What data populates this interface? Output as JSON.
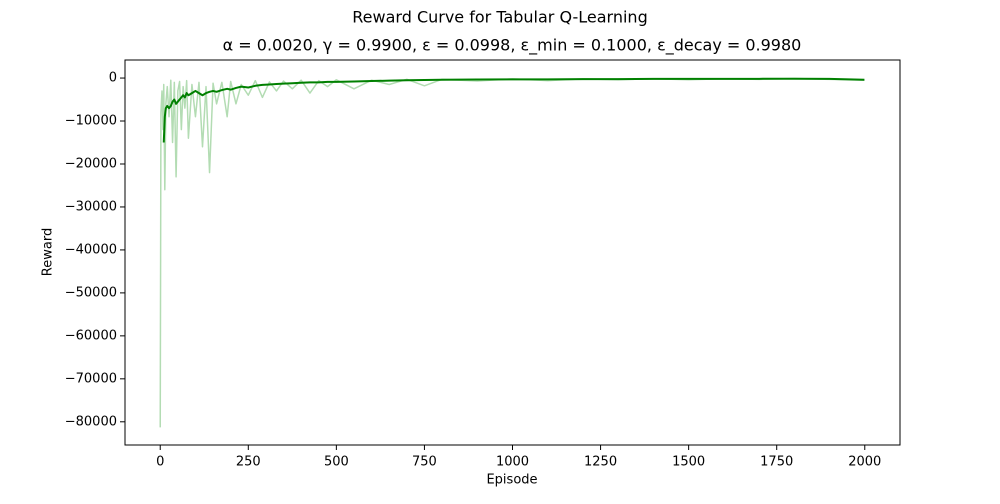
{
  "chart_data": {
    "type": "line",
    "title": "Reward Curve for Tabular Q-Learning",
    "subtitle": "α = 0.0020, γ = 0.9900, ε = 0.0998, ε_min = 0.1000, ε_decay = 0.9980",
    "x_label": "Episode",
    "y_label": "Reward",
    "x": [
      0,
      2,
      5,
      8,
      10,
      13,
      16,
      20,
      25,
      30,
      35,
      40,
      45,
      50,
      55,
      60,
      65,
      70,
      75,
      80,
      90,
      100,
      110,
      120,
      130,
      140,
      150,
      160,
      175,
      190,
      200,
      215,
      230,
      250,
      270,
      290,
      310,
      330,
      350,
      375,
      400,
      425,
      450,
      475,
      500,
      550,
      600,
      650,
      700,
      750,
      800,
      900,
      1000,
      1100,
      1200,
      1300,
      1400,
      1500,
      1600,
      1700,
      1800,
      1900,
      1999
    ],
    "series": [
      {
        "color": "#b3dcb3",
        "values": [
          -81300,
          -8000,
          -3000,
          -12000,
          -1500,
          -26000,
          -6000,
          -2000,
          -9000,
          -500,
          -15000,
          -1000,
          -23000,
          -3000,
          -800,
          -12000,
          -2000,
          -7000,
          -600,
          -14000,
          -1500,
          -9000,
          -1000,
          -16000,
          -2000,
          -22000,
          -1200,
          -6000,
          -1000,
          -9000,
          -800,
          -6000,
          -1500,
          -4000,
          -600,
          -4500,
          -900,
          -3000,
          -700,
          -2500,
          -500,
          -3500,
          -600,
          -2000,
          -400,
          -2500,
          -500,
          -1500,
          -300,
          -1800,
          -300,
          -700,
          -200,
          -600,
          -200,
          -400,
          -150,
          -400,
          -150,
          -300,
          -100,
          -300,
          -500
        ]
      },
      {
        "color": "#008000",
        "values": [
          null,
          null,
          null,
          null,
          -15000,
          -9000,
          -7000,
          -6500,
          -7000,
          -6500,
          -5500,
          -5000,
          -6000,
          -5500,
          -5000,
          -4500,
          -4000,
          -4500,
          -3500,
          -4000,
          -3500,
          -3000,
          -3500,
          -4000,
          -3500,
          -3200,
          -3000,
          -3200,
          -2800,
          -2500,
          -2700,
          -2300,
          -2000,
          -2200,
          -1800,
          -1600,
          -1500,
          -1400,
          -1300,
          -1200,
          -1100,
          -1000,
          -1000,
          -900,
          -900,
          -800,
          -700,
          -600,
          -500,
          -450,
          -400,
          -350,
          -300,
          -300,
          -250,
          -250,
          -200,
          -200,
          -200,
          -180,
          -150,
          -200,
          -400
        ]
      }
    ],
    "xlim": [
      -100,
      2100
    ],
    "ylim": [
      -85400,
      4200
    ],
    "xticks": [
      0,
      250,
      500,
      750,
      1000,
      1250,
      1500,
      1750,
      2000
    ],
    "yticks": [
      0,
      {
        "value": -10000,
        "label": "−10000"
      },
      {
        "value": -20000,
        "label": "−20000"
      },
      {
        "value": -30000,
        "label": "−30000"
      },
      {
        "value": -40000,
        "label": "−40000"
      },
      {
        "value": -50000,
        "label": "−50000"
      },
      {
        "value": -60000,
        "label": "−60000"
      },
      {
        "value": -70000,
        "label": "−70000"
      },
      {
        "value": -80000,
        "label": "−80000"
      }
    ],
    "grid": false
  }
}
